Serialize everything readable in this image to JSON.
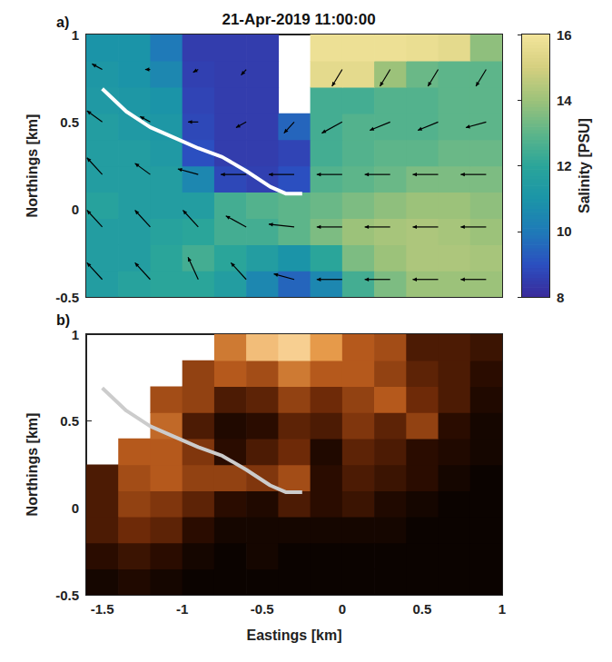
{
  "chart_data": [
    {
      "type": "heatmap",
      "title": "21-Apr-2019 11:00:00",
      "annotations": [
        "a)"
      ],
      "ylabel": "Northings [km]",
      "xlim": [
        -1.6,
        1
      ],
      "xticks": [
        -1.5,
        -1,
        -0.5,
        0,
        0.5,
        1
      ],
      "ylim": [
        -0.5,
        1
      ],
      "yticks": [
        -0.5,
        0,
        0.5,
        1
      ],
      "tick_labels": "y",
      "grid": false,
      "x": [
        -1.5,
        -1.3,
        -1.1,
        -0.9,
        -0.7,
        -0.5,
        -0.3,
        -0.1,
        0.1,
        0.3,
        0.5,
        0.7,
        0.9
      ],
      "y": [
        -0.425,
        -0.275,
        -0.125,
        0.025,
        0.175,
        0.325,
        0.475,
        0.625,
        0.775,
        0.925
      ],
      "values": [
        [
          11.5,
          11.8,
          12,
          12,
          11.5,
          10.5,
          9.5,
          10.5,
          12.5,
          13.5,
          14,
          14,
          14
        ],
        [
          11.5,
          11.5,
          12,
          12.5,
          12,
          11.5,
          11,
          12,
          13.5,
          14,
          14.3,
          14.3,
          14.2
        ],
        [
          11.5,
          11.5,
          11.8,
          12,
          12.5,
          12.5,
          13,
          13.5,
          14,
          14.2,
          14.3,
          14.2,
          14
        ],
        [
          11.8,
          11.5,
          11.5,
          11.5,
          12.5,
          12.8,
          13,
          13.2,
          13.5,
          13.8,
          14,
          14,
          13.8
        ],
        [
          11.5,
          11.5,
          11.5,
          10.5,
          8.8,
          8.6,
          9,
          12.8,
          13,
          13.2,
          13.5,
          13.5,
          13.5
        ],
        [
          11.5,
          11.5,
          11.3,
          9,
          8.5,
          8.5,
          8.7,
          12.5,
          12.8,
          13,
          13,
          13.2,
          13.2
        ],
        [
          11.5,
          11.3,
          11.2,
          8.8,
          8.5,
          8.5,
          9.5,
          12.5,
          12.8,
          12.8,
          12.8,
          13,
          13
        ],
        [
          11.3,
          11.2,
          11,
          8.7,
          8.5,
          8.5,
          null,
          12.5,
          12.5,
          12.8,
          12.8,
          13,
          13
        ],
        [
          11.2,
          11,
          10.5,
          8.6,
          8.5,
          8.5,
          null,
          15.5,
          15.5,
          14,
          13.2,
          13,
          13
        ],
        [
          11,
          11,
          10,
          8.5,
          8.5,
          8.5,
          null,
          15.8,
          15.8,
          15.8,
          15.7,
          15.5,
          13.8
        ]
      ],
      "colorbar": {
        "label": "Salinity [PSU]",
        "lim": [
          8,
          16
        ],
        "ticks": [
          8,
          10,
          12,
          14,
          16
        ]
      },
      "vectors": {
        "x": [
          -1.5,
          -1.2,
          -0.9,
          -0.6,
          -0.3,
          0,
          0.3,
          0.6,
          0.9
        ],
        "y": [
          -0.4,
          -0.1,
          0.2,
          0.5,
          0.8
        ],
        "u": [
          [
            -0.3,
            -0.3,
            -0.2,
            -0.3,
            -0.4,
            -0.5,
            -0.5,
            -0.5,
            -0.5
          ],
          [
            -0.3,
            -0.3,
            -0.3,
            -0.4,
            -0.5,
            -0.5,
            -0.5,
            -0.5,
            -0.5
          ],
          [
            -0.3,
            -0.3,
            -0.4,
            -0.5,
            -0.5,
            -0.5,
            -0.5,
            -0.5,
            -0.5
          ],
          [
            -0.3,
            -0.2,
            -0.2,
            -0.2,
            -0.2,
            -0.4,
            -0.4,
            -0.4,
            -0.4
          ],
          [
            -0.2,
            -0.1,
            -0.1,
            -0.1,
            null,
            -0.2,
            -0.2,
            -0.2,
            -0.2
          ]
        ],
        "v": [
          [
            0.3,
            0.3,
            0.4,
            0.3,
            0.1,
            0,
            0,
            0,
            0
          ],
          [
            0.3,
            0.3,
            0.3,
            0.2,
            0.05,
            0,
            0,
            0,
            0
          ],
          [
            0.3,
            0.2,
            0.1,
            0,
            0,
            0,
            0,
            0,
            0
          ],
          [
            0.2,
            0.1,
            0,
            -0.1,
            -0.2,
            -0.2,
            -0.15,
            -0.15,
            -0.1
          ],
          [
            0.1,
            0,
            -0.05,
            -0.1,
            null,
            -0.3,
            -0.3,
            -0.3,
            -0.3
          ]
        ],
        "color": "#000000"
      },
      "track": {
        "x": [
          -1.5,
          -1.35,
          -1.2,
          -1.05,
          -0.9,
          -0.75,
          -0.6,
          -0.45,
          -0.35,
          -0.25
        ],
        "y": [
          0.69,
          0.56,
          0.47,
          0.41,
          0.35,
          0.3,
          0.22,
          0.13,
          0.09,
          0.09
        ],
        "color": "#ffffff"
      }
    },
    {
      "type": "heatmap",
      "annotations": [
        "b)"
      ],
      "xlabel": "Eastings [km]",
      "ylabel": "Northings [km]",
      "xlim": [
        -1.6,
        1
      ],
      "xticks": [
        -1.5,
        -1,
        -0.5,
        0,
        0.5,
        1
      ],
      "ylim": [
        -0.5,
        1
      ],
      "yticks": [
        -0.5,
        0,
        0.5,
        1
      ],
      "grid": false,
      "x": [
        -1.5,
        -1.3,
        -1.1,
        -0.9,
        -0.7,
        -0.5,
        -0.3,
        -0.1,
        0.1,
        0.3,
        0.5,
        0.7,
        0.9
      ],
      "y": [
        -0.425,
        -0.275,
        -0.125,
        0.025,
        0.175,
        0.325,
        0.475,
        0.625,
        0.775,
        0.925
      ],
      "values": [
        [
          0.1,
          0.15,
          0.1,
          0.05,
          0.05,
          0.05,
          0.05,
          0.05,
          0.05,
          0.05,
          0.05,
          0.05,
          0.05
        ],
        [
          0.2,
          0.25,
          0.2,
          0.1,
          0.05,
          0.1,
          0.05,
          0.05,
          0.05,
          0.05,
          0.05,
          0.05,
          0.05
        ],
        [
          0.3,
          0.4,
          0.35,
          0.2,
          0.1,
          0.1,
          0.1,
          0.1,
          0.1,
          0.1,
          0.05,
          0.05,
          0.05
        ],
        [
          0.3,
          0.5,
          0.45,
          0.35,
          0.2,
          0.15,
          0.3,
          0.2,
          0.25,
          0.15,
          0.1,
          0.05,
          0.05
        ],
        [
          0.3,
          0.55,
          0.6,
          0.5,
          0.5,
          0.45,
          0.55,
          0.2,
          0.3,
          0.25,
          0.2,
          0.1,
          0.05
        ],
        [
          null,
          0.6,
          0.6,
          0.45,
          0.2,
          0.3,
          0.4,
          0.15,
          0.35,
          0.3,
          0.2,
          0.15,
          0.1
        ],
        [
          null,
          null,
          0.65,
          0.3,
          0.15,
          0.2,
          0.35,
          0.3,
          0.45,
          0.35,
          0.5,
          0.2,
          0.1
        ],
        [
          null,
          null,
          0.55,
          0.5,
          0.3,
          0.35,
          0.5,
          0.4,
          0.5,
          0.6,
          0.4,
          0.3,
          0.15
        ],
        [
          null,
          null,
          null,
          0.5,
          0.6,
          0.55,
          0.7,
          0.6,
          0.6,
          0.5,
          0.35,
          0.3,
          0.2
        ],
        [
          null,
          null,
          null,
          null,
          0.7,
          0.9,
          0.95,
          0.8,
          0.6,
          0.55,
          0.3,
          0.3,
          0.25
        ]
      ],
      "clim": [
        0,
        1
      ],
      "track": {
        "x": [
          -1.5,
          -1.35,
          -1.2,
          -1.05,
          -0.9,
          -0.75,
          -0.6,
          -0.45,
          -0.35,
          -0.25
        ],
        "y": [
          0.69,
          0.56,
          0.47,
          0.41,
          0.35,
          0.3,
          0.22,
          0.13,
          0.09,
          0.09
        ],
        "color": "#cccccc"
      }
    }
  ]
}
